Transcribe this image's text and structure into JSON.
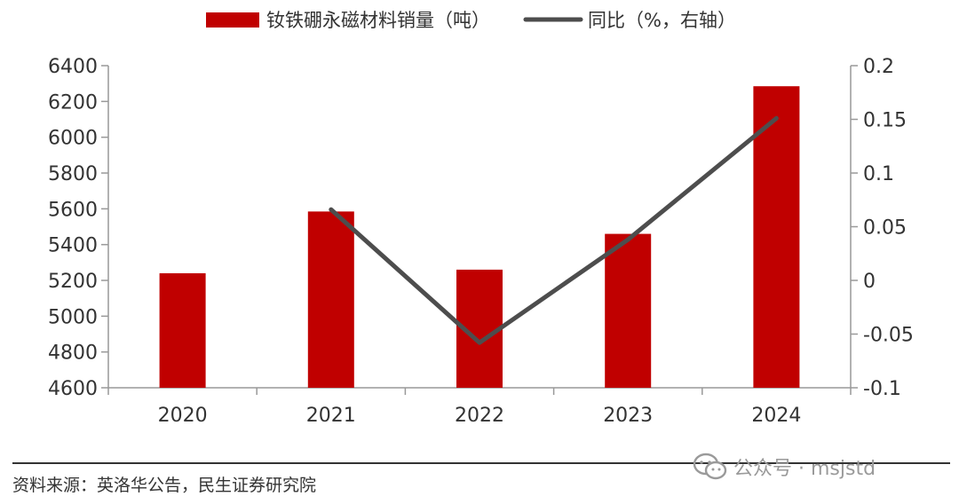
{
  "chart_data": {
    "type": "bar",
    "categories": [
      "2020",
      "2021",
      "2022",
      "2023",
      "2024"
    ],
    "series": [
      {
        "name": "钕铁硼永磁材料销量（吨）",
        "kind": "bar",
        "axis": "left",
        "color": "#c00000",
        "values": [
          5240,
          5585,
          5260,
          5460,
          6285
        ]
      },
      {
        "name": "同比（%，右轴）",
        "kind": "line",
        "axis": "right",
        "color": "#4d4d4d",
        "values": [
          null,
          0.066,
          -0.058,
          0.038,
          0.151
        ]
      }
    ],
    "y_left": {
      "min": 4600,
      "max": 6400,
      "ticks": [
        "4600",
        "4800",
        "5000",
        "5200",
        "5400",
        "5600",
        "5800",
        "6000",
        "6200",
        "6400"
      ]
    },
    "y_right": {
      "min": -0.1,
      "max": 0.2,
      "ticks": [
        "-0.1",
        "-0.05",
        "0",
        "0.05",
        "0.1",
        "0.15",
        "0.2"
      ]
    },
    "legend_position": "top",
    "grid": false
  },
  "source_text": "资料来源：英洛华公告，民生证券研究院",
  "watermark": {
    "icon": "wechat-icon",
    "text": "公众号 · msjstd"
  }
}
